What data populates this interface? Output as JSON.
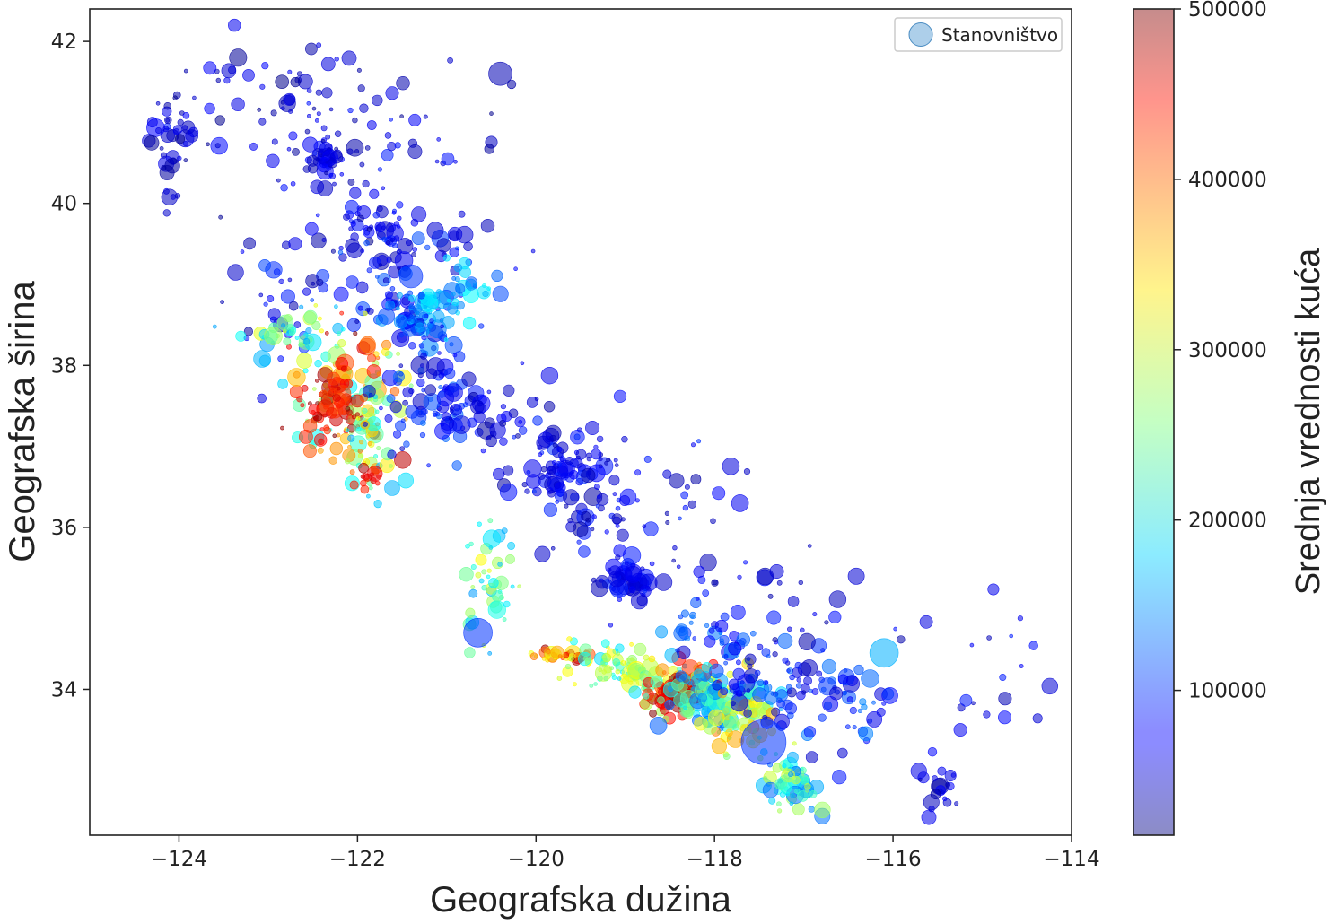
{
  "chart_data": {
    "type": "scatter",
    "title": "",
    "xlabel": "Geografska dužina",
    "ylabel": "Geografska širina",
    "xlim": [
      -125,
      -114
    ],
    "ylim": [
      32.2,
      42.4
    ],
    "x_ticks": [
      -124,
      -122,
      -120,
      -118,
      -116,
      -114
    ],
    "x_tick_labels": [
      "−124",
      "−122",
      "−120",
      "−118",
      "−116",
      "−114"
    ],
    "y_ticks": [
      34,
      36,
      38,
      40,
      42
    ],
    "y_tick_labels": [
      "34",
      "36",
      "38",
      "40",
      "42"
    ],
    "grid": false,
    "legend": {
      "position": "top-right",
      "entries": [
        "Stanovništvo"
      ]
    },
    "size_variable": "Stanovništvo",
    "color_variable": "Srednja vrednosti kuća",
    "colormap": "jet",
    "colorbar": {
      "label": "Srednja vrednosti kuća",
      "range": [
        15000,
        500000
      ],
      "ticks": [
        100000,
        200000,
        300000,
        400000,
        500000
      ],
      "tick_labels": [
        "100000",
        "200000",
        "300000",
        "400000",
        "500000"
      ]
    },
    "clusters": [
      {
        "x": -124.1,
        "y": 40.8,
        "sx": 0.12,
        "sy": 0.35,
        "n": 40,
        "v": [
          20000,
          90000
        ]
      },
      {
        "x": -123.0,
        "y": 41.2,
        "sx": 0.6,
        "sy": 0.4,
        "n": 60,
        "v": [
          20000,
          80000
        ]
      },
      {
        "x": -122.35,
        "y": 40.55,
        "sx": 0.1,
        "sy": 0.15,
        "n": 45,
        "v": [
          30000,
          90000
        ]
      },
      {
        "x": -121.5,
        "y": 40.6,
        "sx": 0.6,
        "sy": 0.5,
        "n": 50,
        "v": [
          20000,
          90000
        ]
      },
      {
        "x": -121.9,
        "y": 39.7,
        "sx": 0.3,
        "sy": 0.25,
        "n": 55,
        "v": [
          30000,
          90000
        ]
      },
      {
        "x": -121.5,
        "y": 39.1,
        "sx": 0.6,
        "sy": 0.4,
        "n": 70,
        "v": [
          30000,
          120000
        ]
      },
      {
        "x": -122.9,
        "y": 39.0,
        "sx": 0.3,
        "sy": 0.35,
        "n": 30,
        "v": [
          30000,
          110000
        ]
      },
      {
        "x": -121.35,
        "y": 38.55,
        "sx": 0.18,
        "sy": 0.18,
        "n": 75,
        "v": [
          50000,
          170000
        ]
      },
      {
        "x": -121.0,
        "y": 38.9,
        "sx": 0.35,
        "sy": 0.2,
        "n": 40,
        "v": [
          100000,
          200000
        ]
      },
      {
        "x": -122.1,
        "y": 37.7,
        "sx": 0.3,
        "sy": 0.4,
        "n": 120,
        "v": [
          180000,
          500000
        ]
      },
      {
        "x": -122.3,
        "y": 37.5,
        "sx": 0.18,
        "sy": 0.2,
        "n": 55,
        "v": [
          400000,
          500000
        ]
      },
      {
        "x": -122.7,
        "y": 38.4,
        "sx": 0.3,
        "sy": 0.2,
        "n": 45,
        "v": [
          150000,
          320000
        ]
      },
      {
        "x": -121.85,
        "y": 36.9,
        "sx": 0.15,
        "sy": 0.3,
        "n": 45,
        "v": [
          150000,
          400000
        ]
      },
      {
        "x": -121.9,
        "y": 36.6,
        "sx": 0.08,
        "sy": 0.06,
        "n": 12,
        "v": [
          420000,
          500000
        ]
      },
      {
        "x": -121.2,
        "y": 37.6,
        "sx": 0.3,
        "sy": 0.35,
        "n": 80,
        "v": [
          40000,
          130000
        ]
      },
      {
        "x": -120.5,
        "y": 37.3,
        "sx": 0.4,
        "sy": 0.25,
        "n": 45,
        "v": [
          30000,
          100000
        ]
      },
      {
        "x": -119.75,
        "y": 36.75,
        "sx": 0.25,
        "sy": 0.25,
        "n": 90,
        "v": [
          30000,
          100000
        ]
      },
      {
        "x": -119.3,
        "y": 36.2,
        "sx": 0.2,
        "sy": 0.3,
        "n": 40,
        "v": [
          30000,
          90000
        ]
      },
      {
        "x": -119.0,
        "y": 35.35,
        "sx": 0.15,
        "sy": 0.1,
        "n": 60,
        "v": [
          40000,
          100000
        ]
      },
      {
        "x": -120.5,
        "y": 35.3,
        "sx": 0.15,
        "sy": 0.35,
        "n": 45,
        "v": [
          150000,
          320000
        ]
      },
      {
        "x": -119.7,
        "y": 34.42,
        "sx": 0.2,
        "sy": 0.04,
        "n": 35,
        "v": [
          300000,
          500000
        ]
      },
      {
        "x": -119.1,
        "y": 34.3,
        "sx": 0.25,
        "sy": 0.15,
        "n": 65,
        "v": [
          180000,
          330000
        ]
      },
      {
        "x": -118.35,
        "y": 34.05,
        "sx": 0.25,
        "sy": 0.15,
        "n": 120,
        "v": [
          150000,
          450000
        ]
      },
      {
        "x": -118.45,
        "y": 33.9,
        "sx": 0.12,
        "sy": 0.12,
        "n": 50,
        "v": [
          420000,
          500000
        ]
      },
      {
        "x": -118.0,
        "y": 33.85,
        "sx": 0.3,
        "sy": 0.15,
        "n": 100,
        "v": [
          120000,
          260000
        ]
      },
      {
        "x": -117.7,
        "y": 33.6,
        "sx": 0.2,
        "sy": 0.2,
        "n": 55,
        "v": [
          220000,
          380000
        ]
      },
      {
        "x": -117.15,
        "y": 32.85,
        "sx": 0.15,
        "sy": 0.2,
        "n": 65,
        "v": [
          120000,
          300000
        ]
      },
      {
        "x": -117.3,
        "y": 34.1,
        "sx": 0.35,
        "sy": 0.25,
        "n": 80,
        "v": [
          40000,
          130000
        ]
      },
      {
        "x": -118.1,
        "y": 34.7,
        "sx": 0.25,
        "sy": 0.15,
        "n": 35,
        "v": [
          60000,
          160000
        ]
      },
      {
        "x": -116.5,
        "y": 33.8,
        "sx": 0.3,
        "sy": 0.3,
        "n": 40,
        "v": [
          50000,
          140000
        ]
      },
      {
        "x": -115.5,
        "y": 32.9,
        "sx": 0.12,
        "sy": 0.2,
        "n": 22,
        "v": [
          30000,
          80000
        ]
      },
      {
        "x": -114.8,
        "y": 34.2,
        "sx": 0.35,
        "sy": 0.5,
        "n": 18,
        "v": [
          30000,
          90000
        ]
      },
      {
        "x": -117.3,
        "y": 35.1,
        "sx": 0.6,
        "sy": 0.35,
        "n": 30,
        "v": [
          30000,
          90000
        ]
      },
      {
        "x": -118.5,
        "y": 36.2,
        "sx": 0.5,
        "sy": 0.6,
        "n": 35,
        "v": [
          30000,
          100000
        ]
      }
    ],
    "highlight_points": [
      {
        "x": -117.45,
        "y": 33.35,
        "pop": 3,
        "v": 100000
      },
      {
        "x": -120.65,
        "y": 34.7,
        "pop": 1.5,
        "v": 100000
      },
      {
        "x": -116.1,
        "y": 34.45,
        "pop": 1.5,
        "v": 160000
      },
      {
        "x": -120.4,
        "y": 41.6,
        "pop": 1,
        "v": 40000
      },
      {
        "x": -121.4,
        "y": 39.1,
        "pop": 1,
        "v": 100000
      }
    ]
  }
}
